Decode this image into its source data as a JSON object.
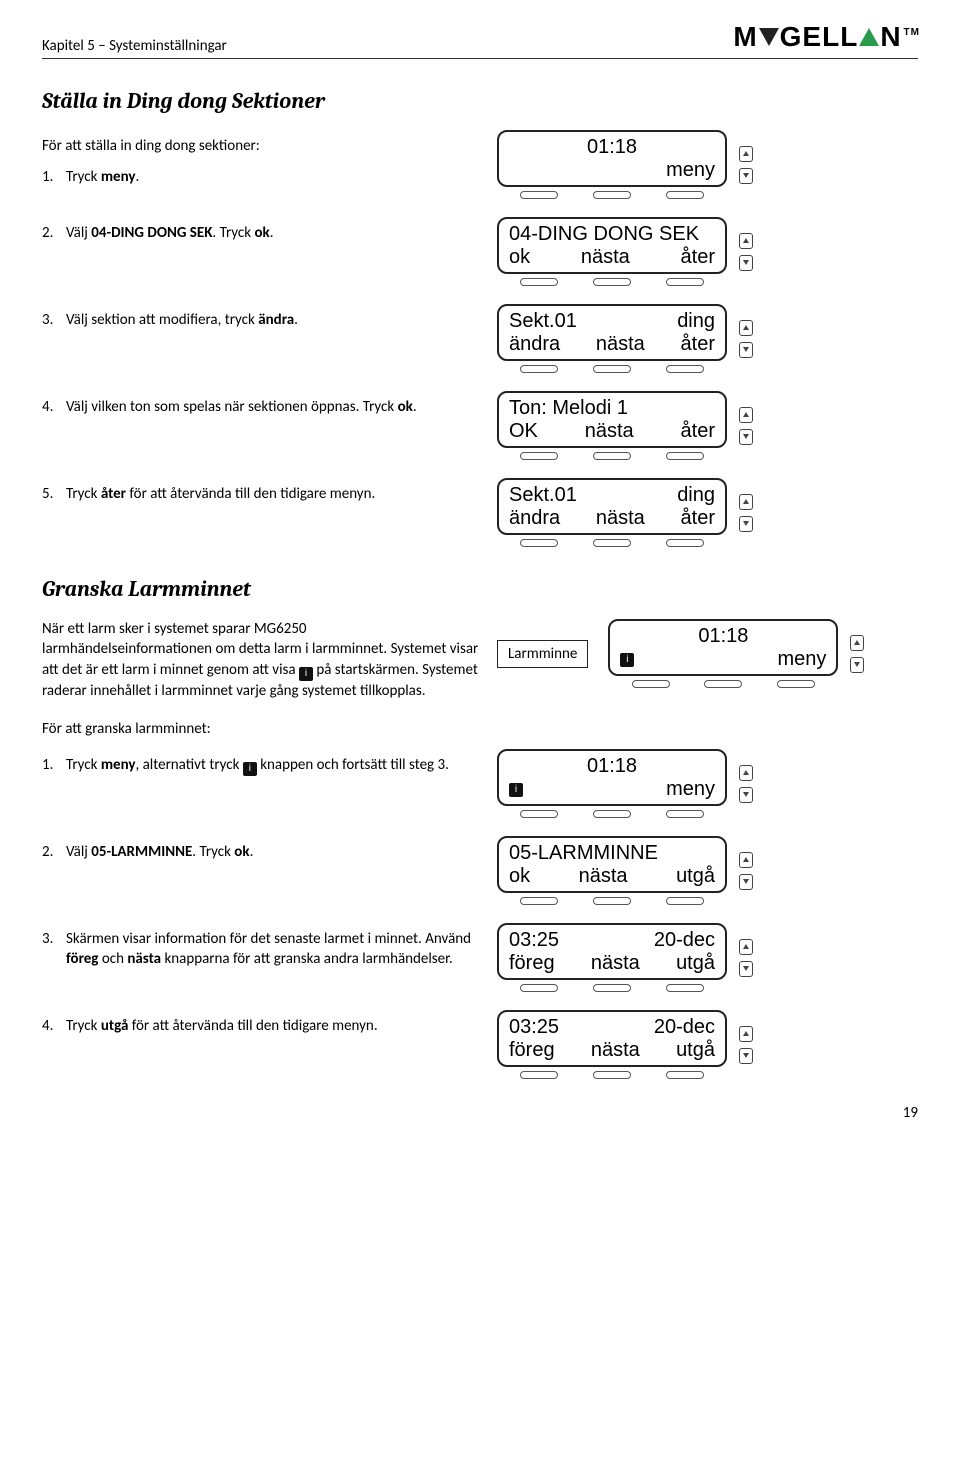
{
  "header": {
    "chapter": "Kapitel 5 – Systeminställningar",
    "brand_pre": "M",
    "brand_mid": "GELL",
    "brand_post": "N"
  },
  "section1": {
    "title": "Ställa in Ding dong Sektioner",
    "intro": "För att ställa in ding dong sektioner:",
    "step1_pre": "Tryck ",
    "step1_b": "meny",
    "step1_post": ".",
    "step2_pre": "Välj ",
    "step2_b": "04-DING DONG SEK",
    "step2_mid": ". Tryck ",
    "step2_b2": "ok",
    "step2_post": ".",
    "step3_pre": "Välj sektion att modifiera, tryck ",
    "step3_b": "ändra",
    "step3_post": ".",
    "step4_pre": "Välj vilken ton som spelas när sektionen öppnas. Tryck ",
    "step4_b": "ok",
    "step4_post": ".",
    "step5_pre": "Tryck ",
    "step5_b": "åter",
    "step5_post": " för att återvända till den tidigare menyn.",
    "lcd1": {
      "top_c": "01:18",
      "bot_r": "meny"
    },
    "lcd2": {
      "top": "04-DING DONG SEK",
      "b_l": "ok",
      "b_c": "nästa",
      "b_r": "åter"
    },
    "lcd3": {
      "t_l": "Sekt.01",
      "t_r": "ding",
      "b_l": "ändra",
      "b_c": "nästa",
      "b_r": "åter"
    },
    "lcd4": {
      "top": "Ton: Melodi 1",
      "b_l": "OK",
      "b_c": "nästa",
      "b_r": "åter"
    },
    "lcd5": {
      "t_l": "Sekt.01",
      "t_r": "ding",
      "b_l": "ändra",
      "b_c": "nästa",
      "b_r": "åter"
    }
  },
  "section2": {
    "title": "Granska Larmminnet",
    "para": "När ett larm sker i systemet sparar MG6250 larmhändelseinformationen om detta larm i larmminnet. Systemet visar att det är ett larm i minnet genom att visa ",
    "para2": " på startskärmen. Systemet raderar innehållet i larmminnet varje gång systemet tillkopplas.",
    "callout": "Larmminne",
    "lcd_a": {
      "top_c": "01:18",
      "bot_l_icon": "i",
      "bot_r": "meny"
    },
    "sub": "För att granska larmminnet:",
    "step1_pre": "Tryck ",
    "step1_b": "meny",
    "step1_mid": ", alternativt tryck ",
    "step1_post": " knappen och fortsätt till steg 3.",
    "lcd_b": {
      "top_c": "01:18",
      "bot_l_icon": "i",
      "bot_r": "meny"
    },
    "step2_pre": "Välj ",
    "step2_b": "05-LARMMINNE",
    "step2_mid": ". Tryck ",
    "step2_b2": "ok",
    "step2_post": ".",
    "lcd_c": {
      "top": "05-LARMMINNE",
      "b_l": "ok",
      "b_c": "nästa",
      "b_r": "utgå"
    },
    "step3_pre": "Skärmen visar information för det senaste larmet i minnet. Använd ",
    "step3_b": "föreg",
    "step3_mid": " och ",
    "step3_b2": "nästa",
    "step3_post": " knapparna för att granska andra larmhändelser.",
    "lcd_d": {
      "t_l": "03:25",
      "t_r": "20-dec",
      "b_l": "föreg",
      "b_c": "nästa",
      "b_r": "utgå"
    },
    "step4_pre": "Tryck ",
    "step4_b": "utgå",
    "step4_post": " för att återvända till den tidigare menyn.",
    "lcd_e": {
      "t_l": "03:25",
      "t_r": "20-dec",
      "b_l": "föreg",
      "b_c": "nästa",
      "b_r": "utgå"
    }
  },
  "nums": {
    "n1": "1.",
    "n2": "2.",
    "n3": "3.",
    "n4": "4.",
    "n5": "5."
  },
  "icons": {
    "info": "i"
  },
  "page": "19"
}
